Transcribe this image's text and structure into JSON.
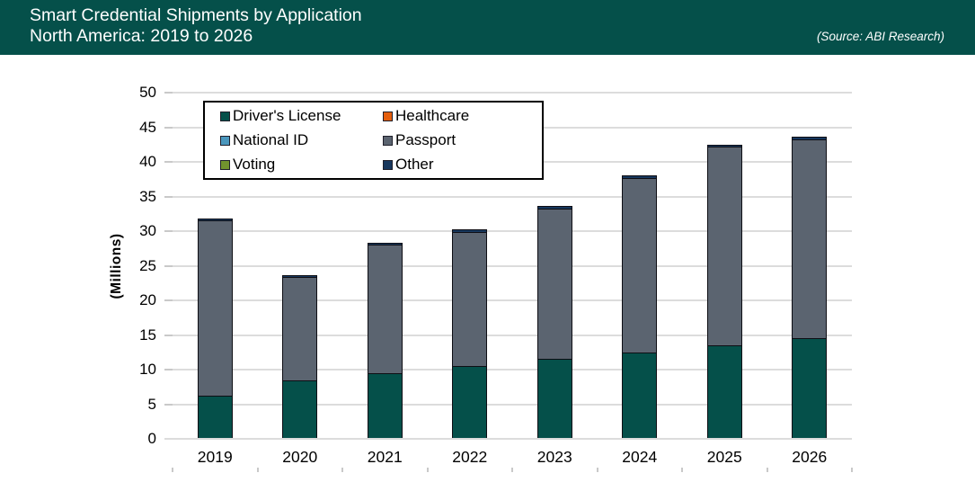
{
  "header": {
    "title_line1": "Smart Credential Shipments by Application",
    "title_line2": "North America: 2019 to 2026",
    "source": "(Source: ABI Research)"
  },
  "colors": {
    "header_bg": "#05504a",
    "gridline": "#dcdcdc",
    "axis_tick": "#c9c9c9",
    "axis_text": "#000000"
  },
  "chart_data": {
    "type": "bar",
    "stacked": true,
    "title": "Smart Credential Shipments by Application",
    "subtitle": "North America: 2019 to 2026",
    "ylabel": "(Millions)",
    "ylim": [
      0,
      50
    ],
    "ytick_step": 5,
    "grid": true,
    "legend_position": "top-left-inside",
    "categories": [
      "2019",
      "2020",
      "2021",
      "2022",
      "2023",
      "2024",
      "2025",
      "2026"
    ],
    "series": [
      {
        "name": "Driver's License",
        "color": "#05504a",
        "values": [
          6.2,
          8.5,
          9.5,
          10.5,
          11.5,
          12.5,
          13.5,
          14.5
        ]
      },
      {
        "name": "Healthcare",
        "color": "#e45e0d",
        "values": [
          0,
          0,
          0,
          0,
          0,
          0,
          0,
          0
        ]
      },
      {
        "name": "National ID",
        "color": "#4a97bd",
        "values": [
          0,
          0,
          0,
          0,
          0,
          0,
          0,
          0
        ]
      },
      {
        "name": "Passport",
        "color": "#5b6470",
        "values": [
          25.3,
          14.9,
          18.5,
          19.4,
          21.8,
          25.2,
          28.7,
          28.8
        ]
      },
      {
        "name": "Voting",
        "color": "#71922e",
        "values": [
          0,
          0,
          0,
          0,
          0,
          0,
          0,
          0
        ]
      },
      {
        "name": "Other",
        "color": "#17375d",
        "values": [
          0.3,
          0.3,
          0.3,
          0.3,
          0.3,
          0.3,
          0.3,
          0.3
        ]
      }
    ],
    "totals": [
      31.8,
      23.7,
      28.3,
      30.2,
      33.6,
      38.0,
      42.5,
      43.6
    ]
  }
}
